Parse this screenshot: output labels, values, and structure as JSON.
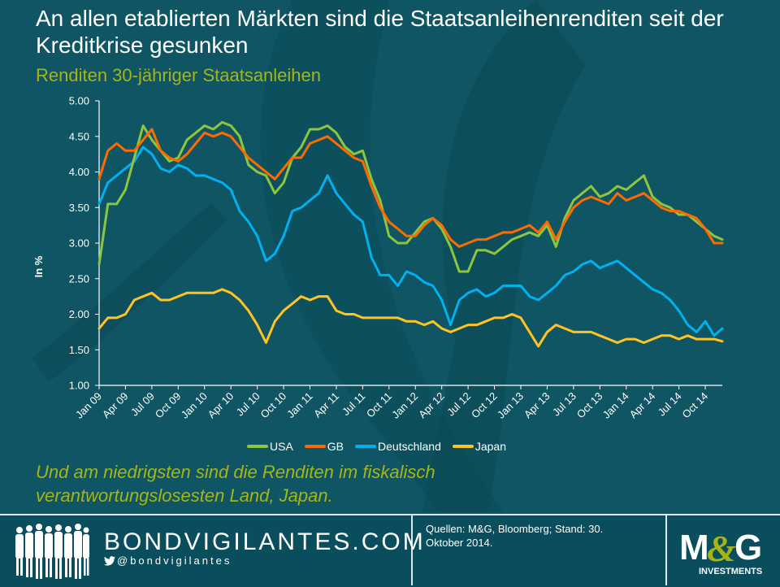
{
  "header": {
    "title": "An allen etablierten Märkten sind die Staatsanleihenrenditen seit der Kreditkrise gesunken",
    "subtitle": "Renditen 30-jähriger Staatsanleihen"
  },
  "caption": "Und am niedrigsten sind die Renditen im fiskalisch verantwortungslosesten Land, Japan.",
  "footer": {
    "brand": "BONDVIGILANTES.COM",
    "twitter_handle": "@bondvigilantes",
    "twitter_icon": "twitter-bird-icon",
    "people_icon": "people-silhouettes-icon",
    "sources": "Quellen: M&G, Bloomberg; Stand: 30. Oktober 2014.",
    "logo_text": "M&G",
    "logo_subtext": "INVESTMENTS"
  },
  "colors": {
    "background": "#0f5563",
    "accent_text": "#a6b516",
    "USA": "#8cc63f",
    "GB": "#ff6a00",
    "Deutschland": "#00b0f0",
    "Japan": "#ffc322"
  },
  "chart_data": {
    "type": "line",
    "title": "Renditen 30-jähriger Staatsanleihen",
    "xlabel": "",
    "ylabel": "In %",
    "ylim": [
      1.0,
      5.0
    ],
    "yticks": [
      "5.00",
      "4.50",
      "4.00",
      "3.50",
      "3.00",
      "2.50",
      "2.00",
      "1.50",
      "1.00"
    ],
    "xticks": [
      "Jan 09",
      "Apr 09",
      "Jul 09",
      "Oct 09",
      "Jan 10",
      "Apr 10",
      "Jul 10",
      "Oct 10",
      "Jan 11",
      "Apr 11",
      "Jul 11",
      "Oct 11",
      "Jan 12",
      "Apr 12",
      "Jul 12",
      "Oct 12",
      "Jan 13",
      "Apr 13",
      "Jul 13",
      "Oct 13",
      "Jan 14",
      "Apr 14",
      "Jul 14",
      "Oct 14"
    ],
    "grid": false,
    "legend_position": "bottom",
    "x_unit": "months since Jan 2009",
    "x": [
      0,
      1,
      2,
      3,
      4,
      5,
      6,
      7,
      8,
      9,
      10,
      11,
      12,
      13,
      14,
      15,
      16,
      17,
      18,
      19,
      20,
      21,
      22,
      23,
      24,
      25,
      26,
      27,
      28,
      29,
      30,
      31,
      32,
      33,
      34,
      35,
      36,
      37,
      38,
      39,
      40,
      41,
      42,
      43,
      44,
      45,
      46,
      47,
      48,
      49,
      50,
      51,
      52,
      53,
      54,
      55,
      56,
      57,
      58,
      59,
      60,
      61,
      62,
      63,
      64,
      65,
      66,
      67,
      68,
      69,
      70,
      71
    ],
    "series": [
      {
        "name": "USA",
        "values": [
          2.7,
          3.55,
          3.55,
          3.75,
          4.2,
          4.65,
          4.45,
          4.3,
          4.15,
          4.2,
          4.45,
          4.55,
          4.65,
          4.6,
          4.7,
          4.65,
          4.5,
          4.1,
          4.0,
          3.95,
          3.7,
          3.85,
          4.2,
          4.35,
          4.6,
          4.6,
          4.65,
          4.55,
          4.35,
          4.25,
          4.3,
          3.9,
          3.6,
          3.1,
          3.0,
          3.0,
          3.15,
          3.3,
          3.35,
          3.2,
          2.95,
          2.6,
          2.6,
          2.9,
          2.9,
          2.85,
          2.95,
          3.05,
          3.1,
          3.15,
          3.1,
          3.25,
          2.95,
          3.35,
          3.6,
          3.7,
          3.8,
          3.65,
          3.7,
          3.8,
          3.75,
          3.85,
          3.95,
          3.65,
          3.55,
          3.5,
          3.4,
          3.4,
          3.3,
          3.2,
          3.1,
          3.05
        ]
      },
      {
        "name": "GB",
        "values": [
          3.9,
          4.3,
          4.4,
          4.3,
          4.3,
          4.45,
          4.6,
          4.3,
          4.2,
          4.15,
          4.25,
          4.4,
          4.55,
          4.5,
          4.55,
          4.5,
          4.35,
          4.2,
          4.1,
          4.0,
          3.9,
          4.05,
          4.2,
          4.2,
          4.4,
          4.45,
          4.5,
          4.4,
          4.3,
          4.2,
          4.15,
          3.8,
          3.5,
          3.3,
          3.2,
          3.1,
          3.1,
          3.25,
          3.35,
          3.25,
          3.05,
          2.95,
          3.0,
          3.05,
          3.05,
          3.1,
          3.15,
          3.15,
          3.2,
          3.25,
          3.15,
          3.3,
          3.05,
          3.3,
          3.5,
          3.6,
          3.65,
          3.6,
          3.55,
          3.7,
          3.6,
          3.65,
          3.7,
          3.6,
          3.5,
          3.45,
          3.45,
          3.4,
          3.35,
          3.2,
          3.0,
          3.0
        ]
      },
      {
        "name": "Deutschland",
        "values": [
          3.55,
          3.85,
          3.95,
          4.05,
          4.15,
          4.35,
          4.25,
          4.05,
          4.0,
          4.1,
          4.05,
          3.95,
          3.95,
          3.9,
          3.85,
          3.75,
          3.45,
          3.3,
          3.1,
          2.75,
          2.85,
          3.1,
          3.45,
          3.5,
          3.6,
          3.7,
          3.95,
          3.7,
          3.55,
          3.4,
          3.3,
          2.8,
          2.55,
          2.55,
          2.4,
          2.6,
          2.55,
          2.45,
          2.4,
          2.2,
          1.85,
          2.2,
          2.3,
          2.35,
          2.25,
          2.3,
          2.4,
          2.4,
          2.4,
          2.25,
          2.2,
          2.3,
          2.4,
          2.55,
          2.6,
          2.7,
          2.75,
          2.65,
          2.7,
          2.75,
          2.65,
          2.55,
          2.45,
          2.35,
          2.3,
          2.2,
          2.05,
          1.85,
          1.75,
          1.9,
          1.7,
          1.8
        ]
      },
      {
        "name": "Japan",
        "values": [
          1.8,
          1.95,
          1.95,
          2.0,
          2.2,
          2.25,
          2.3,
          2.2,
          2.2,
          2.25,
          2.3,
          2.3,
          2.3,
          2.3,
          2.35,
          2.3,
          2.2,
          2.05,
          1.85,
          1.6,
          1.9,
          2.05,
          2.15,
          2.25,
          2.2,
          2.25,
          2.25,
          2.05,
          2.0,
          2.0,
          1.95,
          1.95,
          1.95,
          1.95,
          1.95,
          1.9,
          1.9,
          1.85,
          1.9,
          1.8,
          1.75,
          1.8,
          1.85,
          1.85,
          1.9,
          1.95,
          1.95,
          2.0,
          1.95,
          1.75,
          1.55,
          1.75,
          1.85,
          1.8,
          1.75,
          1.75,
          1.75,
          1.7,
          1.65,
          1.6,
          1.65,
          1.65,
          1.6,
          1.65,
          1.7,
          1.7,
          1.65,
          1.7,
          1.65,
          1.65,
          1.65,
          1.62
        ]
      }
    ]
  }
}
